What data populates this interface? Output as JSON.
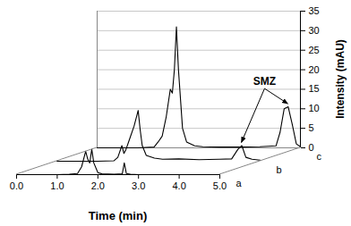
{
  "chart_data": {
    "type": "line",
    "x_label": "Time (min)",
    "y_label": "Intensity (mAU)",
    "xlim": [
      0,
      5
    ],
    "xticks": [
      0,
      1,
      2,
      3,
      4,
      5
    ],
    "ylim": [
      0,
      35
    ],
    "yticks": [
      0,
      5,
      10,
      15,
      20,
      25,
      30,
      35
    ],
    "grid": true,
    "series": [
      {
        "name": "a",
        "color": "#000000",
        "x": [
          0,
          0.5,
          1.0,
          1.3,
          1.5,
          1.6,
          1.7,
          1.75,
          1.8,
          1.85,
          1.9,
          2.0,
          2.1,
          2.4,
          2.6,
          2.65,
          2.7,
          2.8,
          3.0,
          3.5,
          4.0,
          4.5,
          5.0
        ],
        "values": [
          0,
          0,
          0,
          0.1,
          0.3,
          2,
          6,
          4,
          3,
          6.5,
          3,
          0.5,
          0.2,
          0.1,
          0.2,
          3,
          0.3,
          0.1,
          0,
          0,
          0,
          0,
          0
        ]
      },
      {
        "name": "b",
        "color": "#000000",
        "x": [
          0,
          1.0,
          1.4,
          1.5,
          1.6,
          1.65,
          1.7,
          1.8,
          1.9,
          2.0,
          2.05,
          2.1,
          2.2,
          2.4,
          2.6,
          3.0,
          3.5,
          4.0,
          4.3,
          4.45,
          4.55,
          4.65,
          4.8,
          5.0
        ],
        "values": [
          0,
          0,
          0.1,
          1,
          4,
          2,
          3,
          6,
          9,
          13,
          8,
          4,
          1.5,
          0.8,
          0.5,
          0.6,
          0.4,
          0.5,
          0.6,
          3,
          4,
          1,
          0.5,
          0.3
        ]
      },
      {
        "name": "c",
        "color": "#000000",
        "x": [
          0,
          1.0,
          1.4,
          1.5,
          1.6,
          1.7,
          1.8,
          1.85,
          1.9,
          1.95,
          2.0,
          2.1,
          2.2,
          2.4,
          2.6,
          3.0,
          3.5,
          4.0,
          4.4,
          4.5,
          4.6,
          4.7,
          4.8,
          4.9,
          5.0
        ],
        "values": [
          0,
          0,
          0.2,
          1.5,
          3,
          8,
          15,
          14,
          20,
          31,
          20,
          5,
          1.5,
          0.5,
          0.3,
          0.2,
          0.2,
          0.3,
          0.5,
          4,
          10,
          10.5,
          6,
          1,
          0.3
        ]
      }
    ],
    "annotations": [
      {
        "text": "SMZ",
        "x": 4.6,
        "series": [
          "b",
          "c"
        ]
      }
    ]
  }
}
